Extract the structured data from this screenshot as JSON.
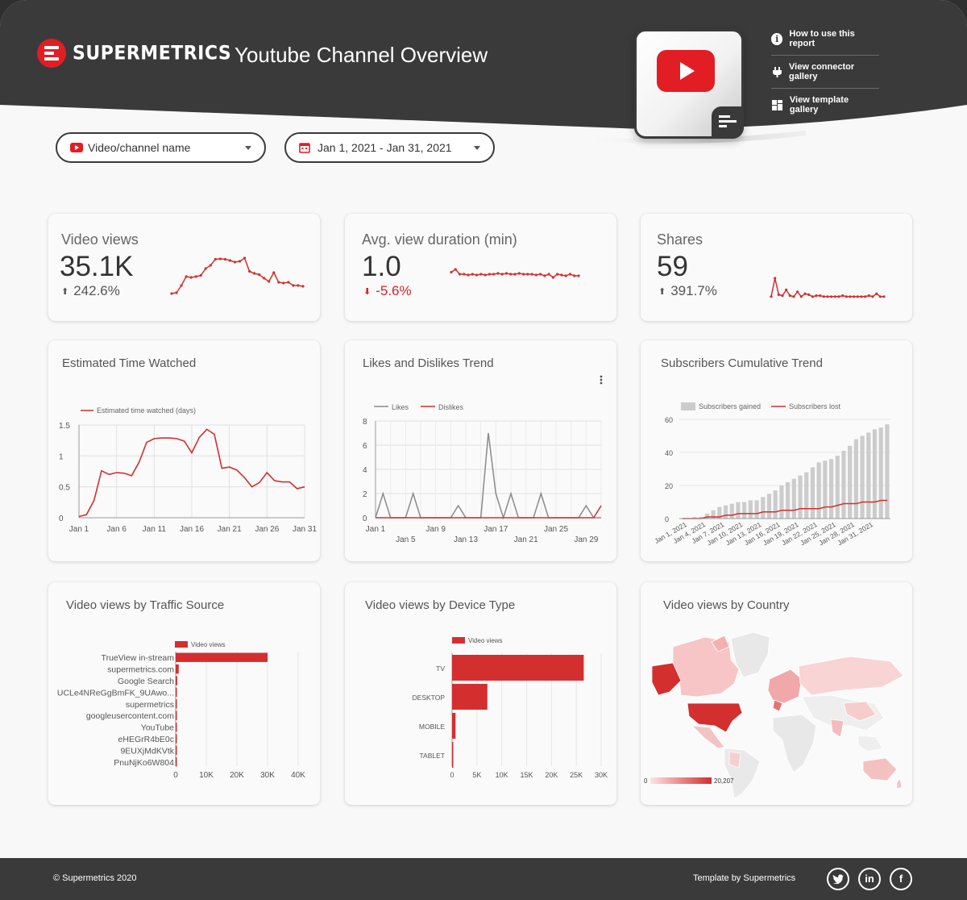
{
  "header": {
    "brand": "SUPERMETRICS",
    "title": "Youtube Channel Overview",
    "links": [
      {
        "label": "How to use this report",
        "icon": "info-icon"
      },
      {
        "label": "View connector gallery",
        "icon": "plug-icon"
      },
      {
        "label": "View template gallery",
        "icon": "grid-icon"
      }
    ]
  },
  "filters": {
    "channel": "Video/channel name",
    "date_range": "Jan 1, 2021 - Jan 31, 2021"
  },
  "kpis": [
    {
      "label": "Video views",
      "value": "35.1K",
      "delta": "242.6%",
      "direction": "up",
      "spark": [
        0.1,
        0.12,
        0.3,
        0.52,
        0.5,
        0.52,
        0.55,
        0.72,
        0.8,
        0.95,
        0.96,
        0.95,
        0.92,
        0.88,
        0.9,
        0.98,
        0.65,
        0.6,
        0.57,
        0.48,
        0.4,
        0.62,
        0.38,
        0.36,
        0.38,
        0.3,
        0.3,
        0.28
      ]
    },
    {
      "label": "Avg. view duration (min)",
      "value": "1.0",
      "delta": "-5.6%",
      "direction": "down",
      "spark": [
        0.55,
        0.62,
        0.5,
        0.5,
        0.48,
        0.5,
        0.48,
        0.5,
        0.48,
        0.5,
        0.5,
        0.52,
        0.5,
        0.52,
        0.5,
        0.5,
        0.52,
        0.5,
        0.5,
        0.5,
        0.48,
        0.5,
        0.46,
        0.5,
        0.42,
        0.5,
        0.48,
        0.46,
        0.5,
        0.46,
        0.46
      ]
    },
    {
      "label": "Shares",
      "value": "59",
      "delta": "391.7%",
      "direction": "up",
      "spark": [
        0.05,
        1.0,
        0.15,
        0.1,
        0.4,
        0.1,
        0.05,
        0.3,
        0.05,
        0.2,
        0.15,
        0.05,
        0.1,
        0.1,
        0.05,
        0.05,
        0.05,
        0.05,
        0.05,
        0.1,
        0.05,
        0.05,
        0.05,
        0.05,
        0.05,
        0.05,
        0.1,
        0.05,
        0.2,
        0.05,
        0.05
      ]
    }
  ],
  "cards": {
    "time_watched_title": "Estimated Time Watched",
    "likes_title": "Likes and Dislikes Trend",
    "subs_title": "Subscribers Cumulative Trend",
    "traffic_title": "Video views by Traffic Source",
    "device_title": "Video views by Device Type",
    "country_title": "Video views by Country"
  },
  "chart_data": [
    {
      "type": "line",
      "title": "Estimated Time Watched",
      "series": [
        {
          "name": "Estimated time watched (days)",
          "color": "#d32f2f",
          "values": [
            0.02,
            0.05,
            0.28,
            0.76,
            0.7,
            0.73,
            0.72,
            0.68,
            0.9,
            1.22,
            1.28,
            1.29,
            1.29,
            1.28,
            1.24,
            1.05,
            1.3,
            1.43,
            1.35,
            0.8,
            0.82,
            0.77,
            0.65,
            0.5,
            0.57,
            0.73,
            0.6,
            0.58,
            0.58,
            0.47,
            0.5
          ]
        }
      ],
      "x_ticks": [
        "Jan 1",
        "Jan 6",
        "Jan 11",
        "Jan 16",
        "Jan 21",
        "Jan 26",
        "Jan 31"
      ],
      "y_ticks": [
        "0",
        "0.5",
        "1",
        "1.5"
      ],
      "ylim": [
        0,
        1.5
      ]
    },
    {
      "type": "line",
      "title": "Likes and Dislikes Trend",
      "series": [
        {
          "name": "Likes",
          "color": "#8a8a8a",
          "values": [
            0,
            2,
            0,
            0,
            0,
            2,
            0,
            0,
            0,
            0,
            0,
            1,
            0,
            0,
            0,
            7,
            2,
            0,
            2,
            0,
            0,
            0,
            2,
            0,
            0,
            0,
            0,
            0,
            1,
            0,
            0
          ]
        },
        {
          "name": "Dislikes",
          "color": "#d32f2f",
          "values": [
            0,
            0,
            0,
            0,
            0,
            0,
            0,
            0,
            0,
            0,
            0,
            0,
            0,
            0,
            0,
            0,
            0,
            0,
            0,
            0,
            0,
            0,
            0,
            0,
            0,
            0,
            0,
            0,
            0,
            0,
            1
          ]
        }
      ],
      "x_ticks_row1": [
        "Jan 1",
        "Jan 9",
        "Jan 17",
        "Jan 25"
      ],
      "x_ticks_row2": [
        "Jan 5",
        "Jan 13",
        "Jan 21",
        "Jan 29"
      ],
      "y_ticks": [
        "0",
        "2",
        "4",
        "6",
        "8"
      ],
      "ylim": [
        0,
        8
      ]
    },
    {
      "type": "bar",
      "title": "Subscribers Cumulative Trend",
      "series": [
        {
          "name": "Subscribers gained",
          "color": "#cccccc",
          "values": [
            0,
            0,
            1,
            1,
            3,
            5,
            7,
            8,
            9,
            10,
            10,
            11,
            11,
            13,
            15,
            17,
            20,
            22,
            24,
            26,
            28,
            31,
            34,
            35,
            36,
            38,
            41,
            44,
            48,
            50,
            52,
            54,
            55,
            57
          ]
        },
        {
          "name": "Subscribers lost",
          "color": "#d32f2f",
          "values": [
            0,
            0,
            0,
            0,
            1,
            1,
            1,
            2,
            2,
            3,
            3,
            3,
            3,
            4,
            4,
            4,
            5,
            5,
            5,
            6,
            6,
            6,
            6,
            7,
            7,
            8,
            9,
            9,
            9,
            10,
            10,
            10,
            11,
            11
          ]
        }
      ],
      "x_ticks": [
        "Jan 1, 2021",
        "Jan 4, 2021",
        "Jan 7, 2021",
        "Jan 10, 2021",
        "Jan 13, 2021",
        "Jan 16, 2021",
        "Jan 19, 2021",
        "Jan 22, 2021",
        "Jan 25, 2021",
        "Jan 28, 2021",
        "Jan 31, 2021"
      ],
      "y_ticks": [
        "0",
        "20",
        "40",
        "60"
      ],
      "ylim": [
        0,
        60
      ]
    },
    {
      "type": "bar",
      "title": "Video views by Traffic Source",
      "orientation": "horizontal",
      "legend": "Video views",
      "categories": [
        "TrueView in-stream",
        "supermetrics.com",
        "Google Search",
        "UCLe4NReGgBmFK_9UAwo...",
        "supermetrics",
        "googleusercontent.com",
        "YouTube",
        "eHEGrR4bE0c",
        "9EUXjMdKVtk",
        "PnuNjKo6W804"
      ],
      "values": [
        30000,
        1000,
        500,
        300,
        200,
        150,
        100,
        50,
        50,
        50
      ],
      "x_ticks": [
        "0",
        "10K",
        "20K",
        "30K",
        "40K"
      ],
      "xlim": [
        0,
        40000
      ]
    },
    {
      "type": "bar",
      "title": "Video views by Device Type",
      "orientation": "horizontal",
      "legend": "Video views",
      "categories": [
        "TV",
        "DESKTOP",
        "MOBILE",
        "TABLET"
      ],
      "values": [
        26500,
        7100,
        700,
        200
      ],
      "x_ticks": [
        "0",
        "5K",
        "10K",
        "15K",
        "20K",
        "25K",
        "30K"
      ],
      "xlim": [
        0,
        30000
      ]
    }
  ],
  "country_map": {
    "scale_min": "0",
    "scale_max": "20,207"
  },
  "footer": {
    "copyright": "© Supermetrics 2020",
    "template_by": "Template by Supermetrics",
    "social": [
      "twitter-icon",
      "linkedin-icon",
      "facebook-icon"
    ]
  }
}
